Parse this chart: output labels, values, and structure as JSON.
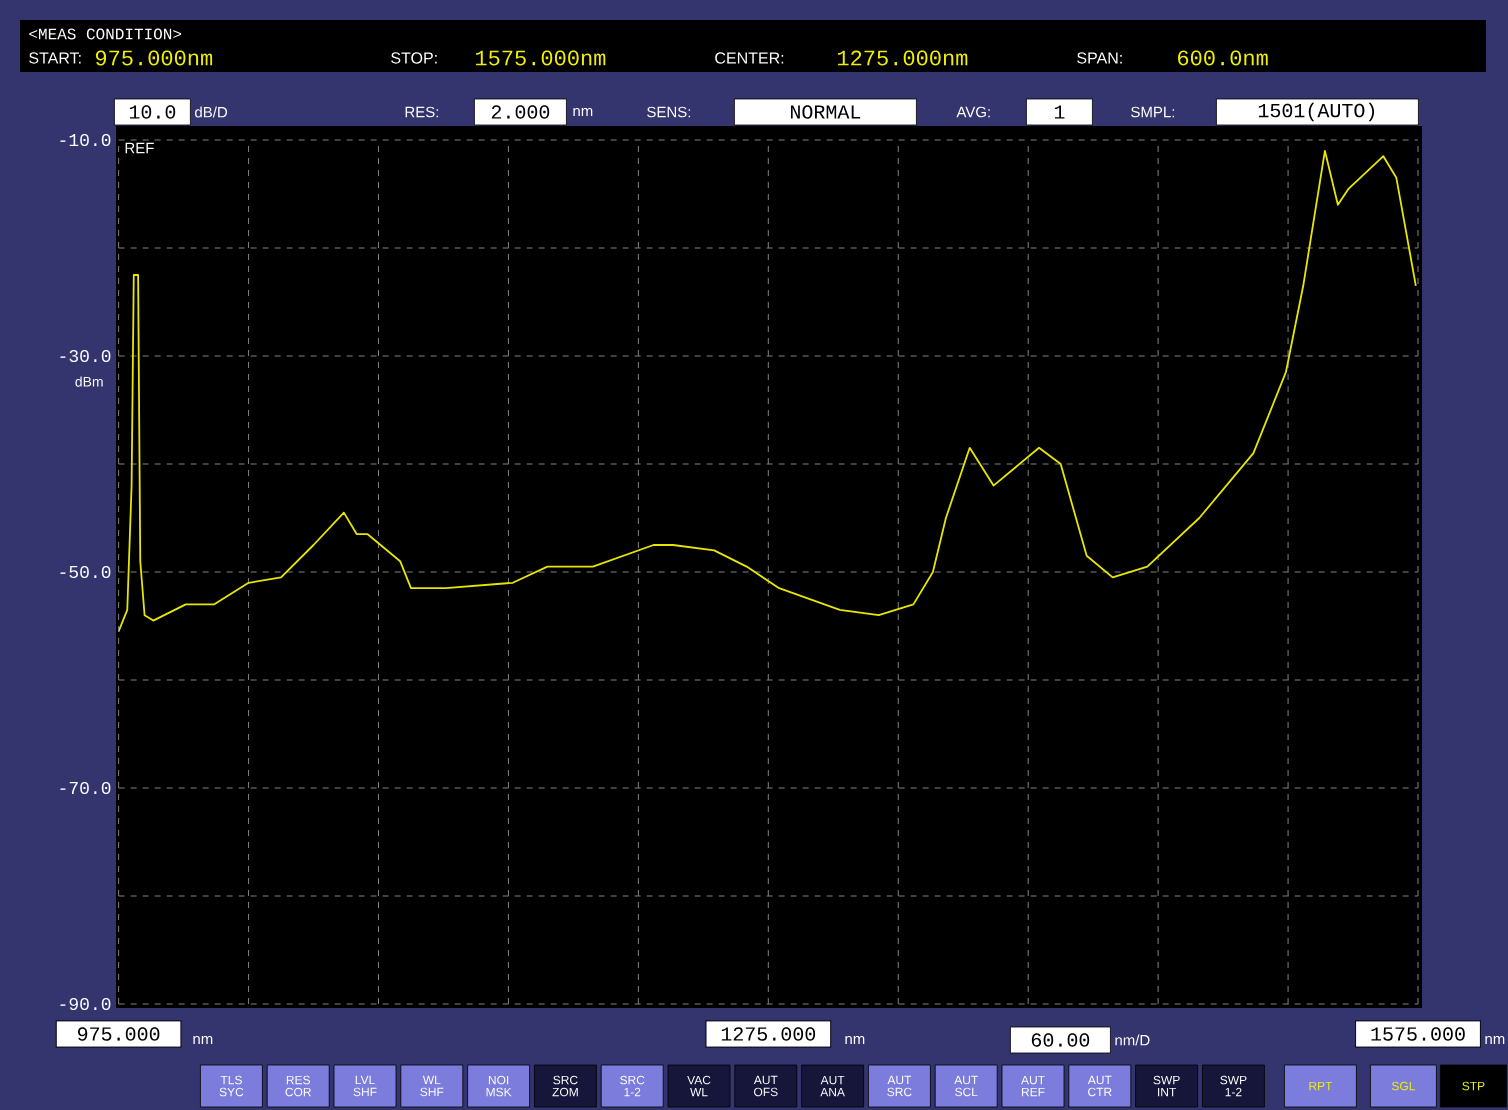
{
  "chart_data": {
    "type": "line",
    "title": "<MEAS CONDITION>",
    "ylabel": "dBm",
    "annotations": [
      "START:",
      "975.000nm",
      "STOP:",
      "1575.000nm",
      "CENTER:",
      "1275.000nm",
      "SPAN:",
      "600.0nm",
      "10.0",
      "dB/D",
      "RES:",
      "2.000",
      "nm",
      "SENS:",
      "NORMAL",
      "AVG:",
      "1",
      "SMPL:",
      "1501(AUTO)",
      "REF",
      "nm",
      "nm",
      "60.00",
      "nm/D",
      "nm",
      "TLS SYC",
      "RES COR",
      "LVL SHF",
      "WL SHF",
      "NOI MSK",
      "SRC ZOM",
      "SRC 1-2",
      "VAC WL",
      "AUT OFS",
      "AUT ANA",
      "AUT SRC",
      "AUT SCL",
      "AUT REF",
      "AUT CTR",
      "SWP INT",
      "SWP 1-2",
      "RPT",
      "SGL",
      "STP"
    ],
    "x": [
      975,
      979,
      981,
      982,
      984,
      985,
      987,
      991,
      1006,
      1019,
      1035,
      1050,
      1065,
      1079,
      1085,
      1090,
      1105,
      1110,
      1126,
      1157,
      1173,
      1194,
      1222,
      1231,
      1250,
      1265,
      1280,
      1308,
      1326,
      1342,
      1351,
      1357,
      1368,
      1379,
      1400,
      1410,
      1422,
      1434,
      1450,
      1474,
      1499,
      1514,
      1522,
      1532,
      1538,
      1543,
      1559,
      1565,
      1574
    ],
    "values": [
      -55.5,
      -53.5,
      -42,
      -22.5,
      -22.5,
      -49,
      -54,
      -54.5,
      -53,
      -53,
      -51,
      -50.5,
      -47.5,
      -44.5,
      -46.5,
      -46.5,
      -49,
      -51.5,
      -51.5,
      -51,
      -49.5,
      -49.5,
      -47.5,
      -47.5,
      -48,
      -49.5,
      -51.5,
      -53.5,
      -54,
      -53,
      -50,
      -45,
      -38.5,
      -42,
      -38.5,
      -40,
      -48.5,
      -50.5,
      -49.5,
      -45,
      -39,
      -31.5,
      -23.5,
      -11,
      -16,
      -14.5,
      -11.5,
      -13.5,
      -23.5
    ],
    "color": "#e6e600",
    "xlim": [
      975,
      1575
    ],
    "ylim": [
      -90,
      -10
    ],
    "xticks": [
      {
        "value": 975,
        "label": "975.000"
      },
      {
        "value": 1035,
        "label": null
      },
      {
        "value": 1095,
        "label": null
      },
      {
        "value": 1155,
        "label": null
      },
      {
        "value": 1215,
        "label": null
      },
      {
        "value": 1275,
        "label": "1275.000"
      },
      {
        "value": 1335,
        "label": null
      },
      {
        "value": 1395,
        "label": null
      },
      {
        "value": 1455,
        "label": null
      },
      {
        "value": 1515,
        "label": null
      },
      {
        "value": 1575,
        "label": "1575.000"
      }
    ],
    "yticks": [
      {
        "value": -90,
        "label": "-90.0"
      },
      {
        "value": -80,
        "label": null
      },
      {
        "value": -70,
        "label": "-70.0"
      },
      {
        "value": -60,
        "label": null
      },
      {
        "value": -50,
        "label": "-50.0"
      },
      {
        "value": -40,
        "label": null
      },
      {
        "value": -30,
        "label": "-30.0"
      },
      {
        "value": -20,
        "label": null
      },
      {
        "value": -10,
        "label": "-10.0"
      }
    ],
    "grid": true
  }
}
